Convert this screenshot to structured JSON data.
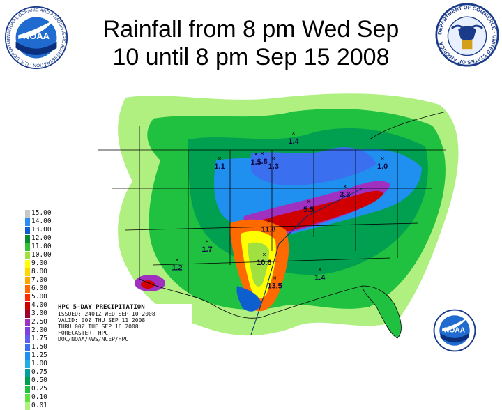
{
  "title_line1": "Rainfall from 8 pm Wed Sep",
  "title_line2": "10 until 8 pm Sep 15 2008",
  "logos": {
    "noaa_left": {
      "text": "NOAA",
      "ring_text": "NATIONAL OCEANIC AND ATMOSPHERIC ADMINISTRATION · U.S. DEPARTMENT OF COMMERCE"
    },
    "commerce_seal": {
      "ring_text": "DEPARTMENT OF COMMERCE · UNITED STATES OF AMERICA"
    },
    "noaa_small": {
      "text": "NOAA"
    }
  },
  "legend": {
    "levels": [
      "15.00",
      "14.00",
      "13.00",
      "12.00",
      "11.00",
      "10.00",
      "9.00",
      "8.00",
      "7.00",
      "6.00",
      "5.00",
      "4.00",
      "3.00",
      "2.50",
      "2.00",
      "1.75",
      "1.50",
      "1.25",
      "1.00",
      "0.75",
      "0.50",
      "0.25",
      "0.10",
      "0.01"
    ],
    "colors": [
      "#c8c8c8",
      "#2a8ff0",
      "#0d5fd0",
      "#0a8a30",
      "#34c234",
      "#a0e040",
      "#ffff00",
      "#ffd700",
      "#ffa500",
      "#ff6a00",
      "#ff2a00",
      "#d00000",
      "#a00030",
      "#a030c0",
      "#8040e0",
      "#6060f0",
      "#3a70f0",
      "#2090f0",
      "#20b0e0",
      "#00a0a0",
      "#00a050",
      "#20c040",
      "#60e040",
      "#b0f080"
    ]
  },
  "info": {
    "line1": "HPC 5-DAY PRECIPITATION",
    "line2": "ISSUED: 2401Z WED SEP 10 2008",
    "line3": "VALID: 00Z THU SEP 11 2008",
    "line4": "THRU 00Z TUE SEP 16 2008",
    "line5": "FORECASTER: HPC",
    "line6": "DOC/NOAA/NWS/NCEP/HPC"
  },
  "maxima": [
    {
      "label": "11.8",
      "lon": -96.6,
      "lat": 36.2
    },
    {
      "label": "10.6",
      "lon": -97.3,
      "lat": 32.2
    },
    {
      "label": "13.5",
      "lon": -95.6,
      "lat": 29.4
    },
    {
      "label": "3.3",
      "lon": -84.4,
      "lat": 40.4
    },
    {
      "label": "1.7",
      "lon": -106.4,
      "lat": 33.8
    },
    {
      "label": "1.5",
      "lon": -98.6,
      "lat": 44.3
    },
    {
      "label": "1.8",
      "lon": -97.6,
      "lat": 44.4
    },
    {
      "label": "1.4",
      "lon": -92.6,
      "lat": 46.8
    },
    {
      "label": "1.3",
      "lon": -95.8,
      "lat": 43.8
    },
    {
      "label": "1.1",
      "lon": -104.4,
      "lat": 43.8
    },
    {
      "label": "1.4",
      "lon": -88.4,
      "lat": 30.4
    },
    {
      "label": "1.2",
      "lon": -111.2,
      "lat": 31.6
    },
    {
      "label": "1.0",
      "lon": -78.4,
      "lat": 43.8
    },
    {
      "label": "5.5",
      "lon": -90.2,
      "lat": 38.6
    }
  ]
}
